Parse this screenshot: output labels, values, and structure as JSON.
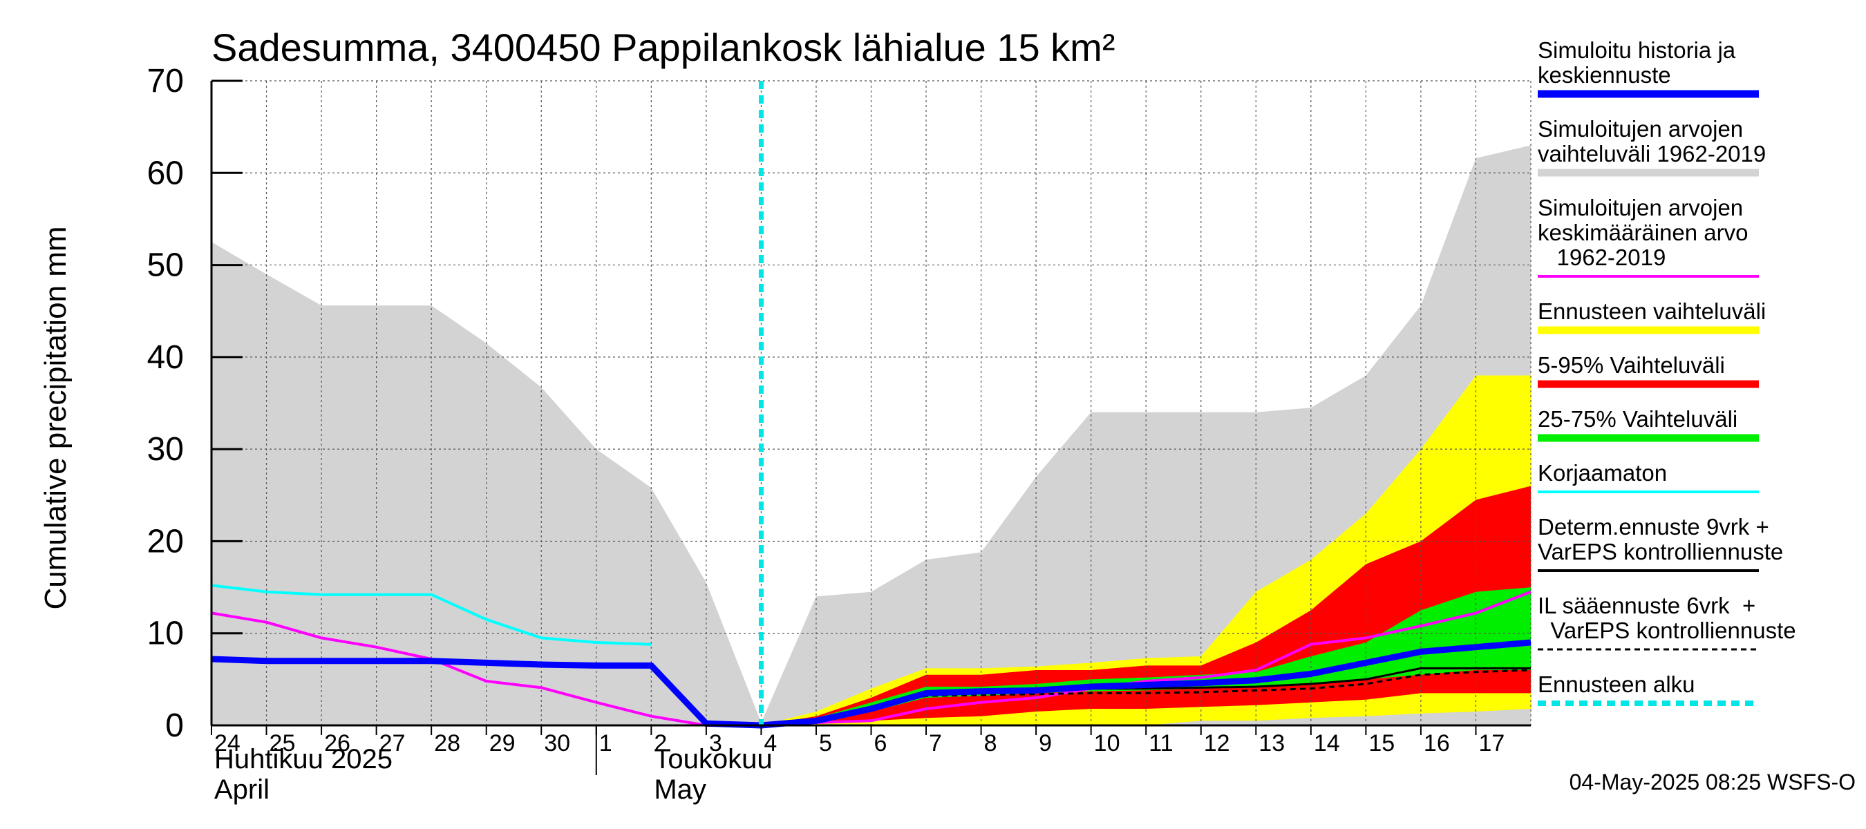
{
  "chart_data": {
    "type": "area",
    "title": "Sadesumma, 3400450 Pappilankosk lähialue 15 km²",
    "ylabel": "Cumulative precipitation   mm",
    "ylim": [
      0,
      70
    ],
    "yticks": [
      0,
      10,
      20,
      30,
      40,
      50,
      60,
      70
    ],
    "grid": true,
    "legend_position": "right",
    "x_dates": [
      "2025-04-24",
      "2025-04-25",
      "2025-04-26",
      "2025-04-27",
      "2025-04-28",
      "2025-04-29",
      "2025-04-30",
      "2025-05-01",
      "2025-05-02",
      "2025-05-03",
      "2025-05-04",
      "2025-05-05",
      "2025-05-06",
      "2025-05-07",
      "2025-05-08",
      "2025-05-09",
      "2025-05-10",
      "2025-05-11",
      "2025-05-12",
      "2025-05-13",
      "2025-05-14",
      "2025-05-15",
      "2025-05-16",
      "2025-05-17",
      "2025-05-18"
    ],
    "x_tick_labels": [
      "24",
      "25",
      "26",
      "27",
      "28",
      "29",
      "30",
      "1",
      "2",
      "3",
      "4",
      "5",
      "6",
      "7",
      "8",
      "9",
      "10",
      "11",
      "12",
      "13",
      "14",
      "15",
      "16",
      "17"
    ],
    "month_labels": [
      {
        "line1": "Huhtikuu  2025",
        "line2": "April",
        "at": "2025-04-24"
      },
      {
        "line1": "Toukokuu",
        "line2": "May",
        "at": "2025-05-02"
      }
    ],
    "forecast_start": "2025-05-04",
    "series": [
      {
        "name": "Simuloitujen arvojen vaihteluväli 1962-2019",
        "kind": "band",
        "color": "#d3d3d3",
        "x": [
          "2025-04-24",
          "2025-04-25",
          "2025-04-26",
          "2025-04-27",
          "2025-04-28",
          "2025-04-29",
          "2025-04-30",
          "2025-05-01",
          "2025-05-02",
          "2025-05-03",
          "2025-05-04",
          "2025-05-05",
          "2025-05-06",
          "2025-05-07",
          "2025-05-08",
          "2025-05-09",
          "2025-05-10",
          "2025-05-11",
          "2025-05-12",
          "2025-05-13",
          "2025-05-14",
          "2025-05-15",
          "2025-05-16",
          "2025-05-17",
          "2025-05-18"
        ],
        "lower": [
          0,
          0,
          0,
          0,
          0,
          0,
          0,
          0,
          0,
          0,
          0,
          0,
          0,
          0,
          0,
          0,
          0,
          0,
          0,
          0,
          0,
          0,
          0,
          0,
          0
        ],
        "upper": [
          52.5,
          49.0,
          45.6,
          45.6,
          45.6,
          41.5,
          36.7,
          30.0,
          25.8,
          15.5,
          0.3,
          14.0,
          14.5,
          18.0,
          18.8,
          27.0,
          34.0,
          34.0,
          34.0,
          34.0,
          34.5,
          38.0,
          45.6,
          61.6,
          63.0
        ]
      },
      {
        "name": "Ennusteen vaihteluväli",
        "kind": "band",
        "color": "#ffff00",
        "x": [
          "2025-05-04",
          "2025-05-05",
          "2025-05-06",
          "2025-05-07",
          "2025-05-08",
          "2025-05-09",
          "2025-05-10",
          "2025-05-11",
          "2025-05-12",
          "2025-05-13",
          "2025-05-14",
          "2025-05-15",
          "2025-05-16",
          "2025-05-17",
          "2025-05-18"
        ],
        "lower": [
          0,
          0,
          0,
          0,
          0,
          0,
          0,
          0,
          0.5,
          0.5,
          0.8,
          1.0,
          1.3,
          1.5,
          1.8
        ],
        "upper": [
          0,
          1.5,
          4.0,
          6.2,
          6.2,
          6.4,
          6.8,
          7.3,
          7.5,
          14.5,
          18.0,
          23.0,
          30.0,
          38.0,
          38.0
        ]
      },
      {
        "name": "5-95% Vaihteluväli",
        "kind": "band",
        "color": "#ff0000",
        "x": [
          "2025-05-04",
          "2025-05-05",
          "2025-05-06",
          "2025-05-07",
          "2025-05-08",
          "2025-05-09",
          "2025-05-10",
          "2025-05-11",
          "2025-05-12",
          "2025-05-13",
          "2025-05-14",
          "2025-05-15",
          "2025-05-16",
          "2025-05-17",
          "2025-05-18"
        ],
        "lower": [
          0,
          0.2,
          0.5,
          0.8,
          1.0,
          1.5,
          1.8,
          1.8,
          2.0,
          2.2,
          2.5,
          2.8,
          3.5,
          3.5,
          3.5
        ],
        "upper": [
          0,
          1.0,
          3.0,
          5.5,
          5.5,
          6.0,
          6.0,
          6.5,
          6.5,
          9.0,
          12.5,
          17.5,
          20.0,
          24.5,
          26.0
        ]
      },
      {
        "name": "25-75% Vaihteluväli",
        "kind": "band",
        "color": "#00ee00",
        "x": [
          "2025-05-04",
          "2025-05-05",
          "2025-05-06",
          "2025-05-07",
          "2025-05-08",
          "2025-05-09",
          "2025-05-10",
          "2025-05-11",
          "2025-05-12",
          "2025-05-13",
          "2025-05-14",
          "2025-05-15",
          "2025-05-16",
          "2025-05-17",
          "2025-05-18"
        ],
        "lower": [
          0,
          0.5,
          1.5,
          3.0,
          3.2,
          3.5,
          3.7,
          3.8,
          4.0,
          4.2,
          4.5,
          5.0,
          5.5,
          6.0,
          6.0
        ],
        "upper": [
          0,
          0.8,
          2.5,
          4.2,
          4.2,
          4.5,
          5.0,
          5.2,
          5.5,
          5.8,
          7.5,
          9.0,
          12.5,
          14.5,
          15.0
        ]
      },
      {
        "name": "Simuloitujen arvojen keskimääräinen arvo 1962-2019",
        "kind": "line",
        "color": "#ff00ff",
        "x": [
          "2025-04-24",
          "2025-04-25",
          "2025-04-26",
          "2025-04-27",
          "2025-04-28",
          "2025-04-29",
          "2025-04-30",
          "2025-05-01",
          "2025-05-02",
          "2025-05-03",
          "2025-05-04",
          "2025-05-05",
          "2025-05-06",
          "2025-05-07",
          "2025-05-08",
          "2025-05-09",
          "2025-05-10",
          "2025-05-11",
          "2025-05-12",
          "2025-05-13",
          "2025-05-14",
          "2025-05-15",
          "2025-05-16",
          "2025-05-17",
          "2025-05-18"
        ],
        "y": [
          12.2,
          11.2,
          9.5,
          8.5,
          7.2,
          4.8,
          4.1,
          2.5,
          1.0,
          0,
          0,
          0.3,
          0.5,
          1.8,
          2.5,
          3.0,
          4.0,
          4.8,
          5.2,
          6.0,
          8.8,
          9.5,
          10.8,
          12.2,
          14.5
        ]
      },
      {
        "name": "Korjaamaton",
        "kind": "line",
        "color": "#00ffff",
        "x": [
          "2025-04-24",
          "2025-04-25",
          "2025-04-26",
          "2025-04-27",
          "2025-04-28",
          "2025-04-29",
          "2025-04-30",
          "2025-05-01",
          "2025-05-02"
        ],
        "y": [
          15.2,
          14.5,
          14.2,
          14.2,
          14.2,
          11.5,
          9.5,
          9.0,
          8.8
        ]
      },
      {
        "name": "IL sääennuste 6vrk  +   VarEPS kontrolliennuste",
        "kind": "dashed",
        "color": "#000000",
        "x": [
          "2025-05-04",
          "2025-05-05",
          "2025-05-06",
          "2025-05-07",
          "2025-05-08",
          "2025-05-09",
          "2025-05-10",
          "2025-05-11",
          "2025-05-12",
          "2025-05-13",
          "2025-05-14",
          "2025-05-15",
          "2025-05-16",
          "2025-05-17",
          "2025-05-18"
        ],
        "y": [
          0,
          0.5,
          1.8,
          3.2,
          3.3,
          3.4,
          3.5,
          3.5,
          3.6,
          3.8,
          4.0,
          4.5,
          5.5,
          5.8,
          6.0
        ]
      },
      {
        "name": "Determ.ennuste 9vrk +   VarEPS kontrolliennuste",
        "kind": "line",
        "color": "#000000",
        "x": [
          "2025-05-04",
          "2025-05-05",
          "2025-05-06",
          "2025-05-07",
          "2025-05-08",
          "2025-05-09",
          "2025-05-10",
          "2025-05-11",
          "2025-05-12",
          "2025-05-13",
          "2025-05-14",
          "2025-05-15",
          "2025-05-16",
          "2025-05-17",
          "2025-05-18"
        ],
        "y": [
          0,
          0.6,
          2.0,
          3.6,
          3.8,
          3.9,
          4.0,
          4.0,
          4.1,
          4.2,
          4.5,
          5.0,
          6.2,
          6.2,
          6.2
        ]
      },
      {
        "name": "Simuloitu historia ja   keskiennuste",
        "kind": "line",
        "color": "#0000ff",
        "x": [
          "2025-04-24",
          "2025-04-25",
          "2025-04-26",
          "2025-04-27",
          "2025-04-28",
          "2025-04-29",
          "2025-04-30",
          "2025-05-01",
          "2025-05-02",
          "2025-05-03",
          "2025-05-04",
          "2025-05-05",
          "2025-05-06",
          "2025-05-07",
          "2025-05-08",
          "2025-05-09",
          "2025-05-10",
          "2025-05-11",
          "2025-05-12",
          "2025-05-13",
          "2025-05-14",
          "2025-05-15",
          "2025-05-16",
          "2025-05-17",
          "2025-05-18"
        ],
        "y": [
          7.2,
          7.0,
          7.0,
          7.0,
          7.0,
          6.8,
          6.6,
          6.5,
          6.5,
          0.2,
          0,
          0.5,
          1.8,
          3.5,
          3.7,
          3.8,
          4.2,
          4.4,
          4.6,
          4.9,
          5.6,
          6.8,
          8.0,
          8.5,
          9.0
        ]
      }
    ],
    "legend": [
      {
        "text": "Simuloitu historia ja\nkeskiennuste",
        "color": "#0000ff",
        "style": "thick"
      },
      {
        "text": "Simuloitujen arvojen\nvaihteluväli 1962-2019",
        "color": "#d3d3d3",
        "style": "thick"
      },
      {
        "text": "Simuloitujen arvojen\nkeskimääräinen arvo\n   1962-2019",
        "color": "#ff00ff",
        "style": "thin"
      },
      {
        "text": "Ennusteen vaihteluväli",
        "color": "#ffff00",
        "style": "thick"
      },
      {
        "text": "5-95% Vaihteluväli",
        "color": "#ff0000",
        "style": "thick"
      },
      {
        "text": "25-75% Vaihteluväli",
        "color": "#00ee00",
        "style": "thick"
      },
      {
        "text": "Korjaamaton",
        "color": "#00ffff",
        "style": "thin"
      },
      {
        "text": "Determ.ennuste 9vrk +\nVarEPS kontrolliennuste",
        "color": "#000000",
        "style": "thin"
      },
      {
        "text": "IL sääennuste 6vrk  +\n  VarEPS kontrolliennuste",
        "color": "#000000",
        "style": "dashed"
      },
      {
        "text": "Ennusteen alku",
        "color": "#00e5e5",
        "style": "dotted"
      }
    ],
    "footer": "04-May-2025 08:25 WSFS-O"
  }
}
